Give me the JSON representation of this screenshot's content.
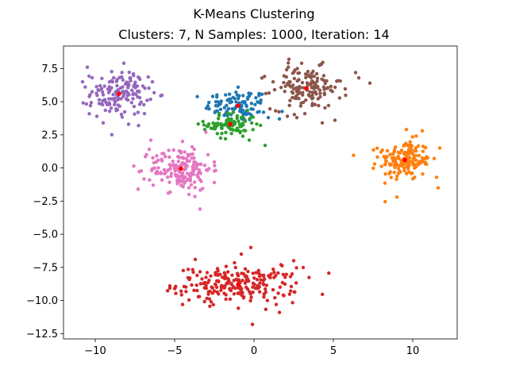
{
  "chart_data": {
    "type": "scatter",
    "title": "K-Means Clustering",
    "subtitle": "Clusters: 7, N Samples: 1000, Iteration: 14",
    "xlabel": "",
    "ylabel": "",
    "xlim": [
      -12,
      12.8
    ],
    "ylim": [
      -12.9,
      9.2
    ],
    "xticks": [
      -10,
      -5,
      0,
      5,
      10
    ],
    "xtick_labels": [
      "−10",
      "−5",
      "0",
      "5",
      "10"
    ],
    "yticks": [
      7.5,
      5.0,
      2.5,
      0.0,
      -2.5,
      -5.0,
      -7.5,
      -10.0,
      -12.5
    ],
    "ytick_labels": [
      "7.5",
      "5.0",
      "2.5",
      "0.0",
      "−2.5",
      "−5.0",
      "−7.5",
      "−10.0",
      "−12.5"
    ],
    "grid": false,
    "centroid_color": "#ff0000",
    "clusters": [
      {
        "color": "#1f77b4",
        "center": [
          -1.0,
          4.7
        ],
        "spread": [
          1.0,
          0.6
        ],
        "n": 90,
        "points": [
          [
            -1.0,
            6.1
          ],
          [
            -0.2,
            5.6
          ],
          [
            -2.6,
            5.4
          ],
          [
            -1.5,
            5.2
          ],
          [
            -0.6,
            5.0
          ],
          [
            0.4,
            4.9
          ],
          [
            -2.4,
            4.7
          ],
          [
            -3.0,
            4.5
          ],
          [
            0.6,
            4.2
          ],
          [
            0.9,
            3.8
          ],
          [
            1.6,
            3.7
          ],
          [
            -0.3,
            4.1
          ]
        ]
      },
      {
        "color": "#ff7f0e",
        "center": [
          9.5,
          0.6
        ],
        "spread": [
          0.8,
          0.75
        ],
        "n": 160,
        "points": [
          [
            9.6,
            2.9
          ],
          [
            10.6,
            2.8
          ],
          [
            11.7,
            1.5
          ],
          [
            8.0,
            1.2
          ],
          [
            7.6,
            0.3
          ],
          [
            11.5,
            -0.7
          ],
          [
            9.0,
            -2.2
          ],
          [
            11.6,
            -1.5
          ],
          [
            10.8,
            0.3
          ]
        ]
      },
      {
        "color": "#2ca02c",
        "center": [
          -1.5,
          3.3
        ],
        "spread": [
          0.8,
          0.45
        ],
        "n": 80,
        "points": [
          [
            -2.2,
            4.1
          ],
          [
            -0.8,
            3.8
          ],
          [
            -2.7,
            3.0
          ],
          [
            -3.1,
            2.9
          ],
          [
            -1.8,
            2.2
          ],
          [
            -0.7,
            2.4
          ],
          [
            0.7,
            1.7
          ],
          [
            -0.3,
            2.1
          ]
        ]
      },
      {
        "color": "#d62728",
        "center": [
          -1.0,
          -8.8
        ],
        "spread": [
          1.9,
          0.65
        ],
        "n": 220,
        "points": [
          [
            -0.2,
            -6.0
          ],
          [
            -0.8,
            -6.5
          ],
          [
            -3.7,
            -6.9
          ],
          [
            -5.3,
            -8.9
          ],
          [
            -4.5,
            -10.3
          ],
          [
            1.7,
            -7.3
          ],
          [
            2.5,
            -7.0
          ],
          [
            2.4,
            -8.0
          ],
          [
            1.6,
            -10.9
          ],
          [
            -0.1,
            -11.8
          ],
          [
            1.4,
            -10.3
          ],
          [
            -2.7,
            -10.1
          ]
        ]
      },
      {
        "color": "#9467bd",
        "center": [
          -8.5,
          5.6
        ],
        "spread": [
          0.9,
          0.8
        ],
        "n": 140,
        "points": [
          [
            -10.5,
            7.6
          ],
          [
            -8.2,
            7.9
          ],
          [
            -7.6,
            7.1
          ],
          [
            -10.8,
            6.5
          ],
          [
            -6.4,
            6.5
          ],
          [
            -9.9,
            3.9
          ],
          [
            -9.5,
            3.4
          ],
          [
            -7.9,
            3.3
          ],
          [
            -6.9,
            4.1
          ],
          [
            -10.3,
            4.7
          ]
        ]
      },
      {
        "color": "#8c564b",
        "center": [
          3.3,
          6.0
        ],
        "spread": [
          1.1,
          0.8
        ],
        "n": 140,
        "points": [
          [
            2.2,
            8.2
          ],
          [
            3.0,
            7.9
          ],
          [
            4.2,
            7.8
          ],
          [
            6.4,
            7.2
          ],
          [
            6.6,
            6.8
          ],
          [
            7.3,
            6.4
          ],
          [
            1.2,
            6.5
          ],
          [
            1.3,
            5.9
          ],
          [
            2.1,
            3.9
          ],
          [
            3.2,
            4.1
          ],
          [
            4.3,
            3.4
          ],
          [
            5.1,
            3.6
          ],
          [
            2.7,
            3.8
          ]
        ]
      },
      {
        "color": "#e377c2",
        "center": [
          -4.6,
          -0.05
        ],
        "spread": [
          0.95,
          0.8
        ],
        "n": 170,
        "points": [
          [
            -6.5,
            2.1
          ],
          [
            -4.5,
            2.0
          ],
          [
            -3.9,
            1.6
          ],
          [
            -6.6,
            1.4
          ],
          [
            -2.9,
            1.0
          ],
          [
            -3.1,
            0.2
          ],
          [
            -7.3,
            -1.6
          ],
          [
            -5.4,
            -1.9
          ],
          [
            -4.1,
            -2.0
          ],
          [
            -3.4,
            -3.1
          ],
          [
            -2.5,
            -1.1
          ],
          [
            -6.3,
            0.4
          ]
        ]
      }
    ]
  }
}
